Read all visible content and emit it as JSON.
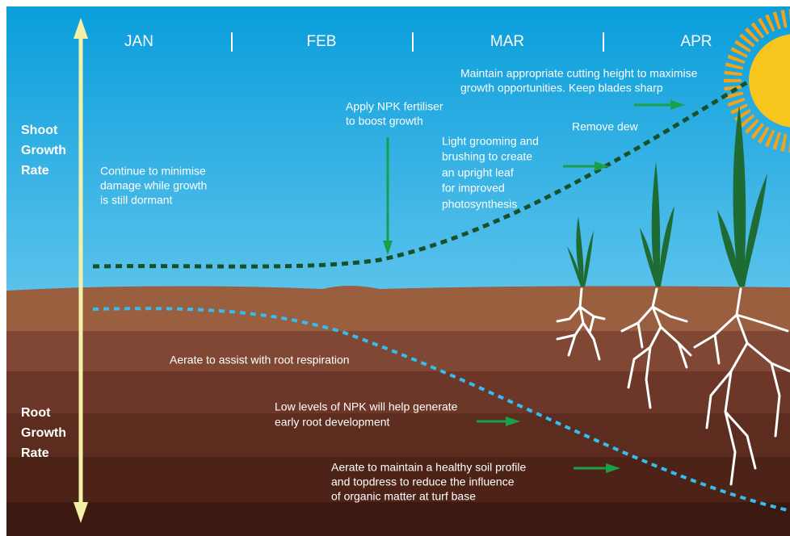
{
  "months": [
    "JAN",
    "FEB",
    "MAR",
    "APR"
  ],
  "axis": {
    "shoot": [
      "Shoot",
      "Growth",
      "Rate"
    ],
    "root": [
      "Root",
      "Growth",
      "Rate"
    ]
  },
  "annotations": [
    {
      "lines": [
        "Continue to minimise",
        "damage while growth",
        "is still dormant"
      ]
    },
    {
      "lines": [
        "Apply NPK fertiliser",
        "to boost growth"
      ]
    },
    {
      "lines": [
        "Maintain appropriate cutting height to maximise",
        "growth opportunities. Keep blades sharp"
      ]
    },
    {
      "lines": [
        "Remove dew"
      ]
    },
    {
      "lines": [
        "Light grooming and",
        "brushing to create",
        "an upright leaf",
        "for improved",
        "photosynthesis"
      ]
    },
    {
      "lines": [
        "Aerate to assist with root respiration"
      ]
    },
    {
      "lines": [
        "Low levels of NPK will help generate",
        "early root development"
      ]
    },
    {
      "lines": [
        "Aerate to maintain a healthy soil profile",
        "and topdress to reduce the influence",
        "of organic matter at turf base"
      ]
    }
  ]
}
